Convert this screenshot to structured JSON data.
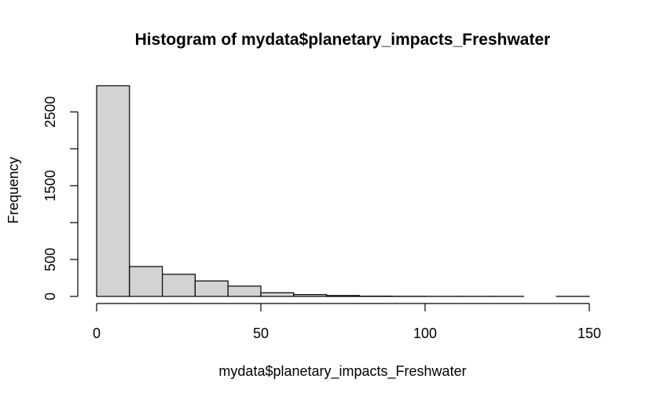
{
  "chart_data": {
    "type": "bar",
    "title": "Histogram of mydata$planetary_impacts_Freshwater",
    "xlabel": "mydata$planetary_impacts_Freshwater",
    "ylabel": "Frequency",
    "bar_color": "#d3d3d3",
    "border_color": "#000000",
    "bins": [
      {
        "start": 0,
        "end": 10,
        "count": 2855
      },
      {
        "start": 10,
        "end": 20,
        "count": 405
      },
      {
        "start": 20,
        "end": 30,
        "count": 300
      },
      {
        "start": 30,
        "end": 40,
        "count": 210
      },
      {
        "start": 40,
        "end": 50,
        "count": 140
      },
      {
        "start": 50,
        "end": 60,
        "count": 50
      },
      {
        "start": 60,
        "end": 70,
        "count": 25
      },
      {
        "start": 70,
        "end": 80,
        "count": 12
      },
      {
        "start": 80,
        "end": 90,
        "count": 4
      },
      {
        "start": 90,
        "end": 100,
        "count": 2
      },
      {
        "start": 100,
        "end": 110,
        "count": 1
      },
      {
        "start": 110,
        "end": 120,
        "count": 1
      },
      {
        "start": 120,
        "end": 130,
        "count": 1
      },
      {
        "start": 130,
        "end": 140,
        "count": 0
      },
      {
        "start": 140,
        "end": 150,
        "count": 1
      }
    ],
    "xlim": [
      0,
      150
    ],
    "ylim": [
      0,
      2855
    ],
    "x_ticks": [
      0,
      50,
      100,
      150
    ],
    "x_tick_labels": [
      "0",
      "50",
      "100",
      "150"
    ],
    "y_ticks": [
      0,
      500,
      1000,
      1500,
      2000,
      2500
    ],
    "y_tick_labels": [
      "0",
      "500",
      "",
      "1500",
      "",
      "2500"
    ],
    "grid": false
  }
}
